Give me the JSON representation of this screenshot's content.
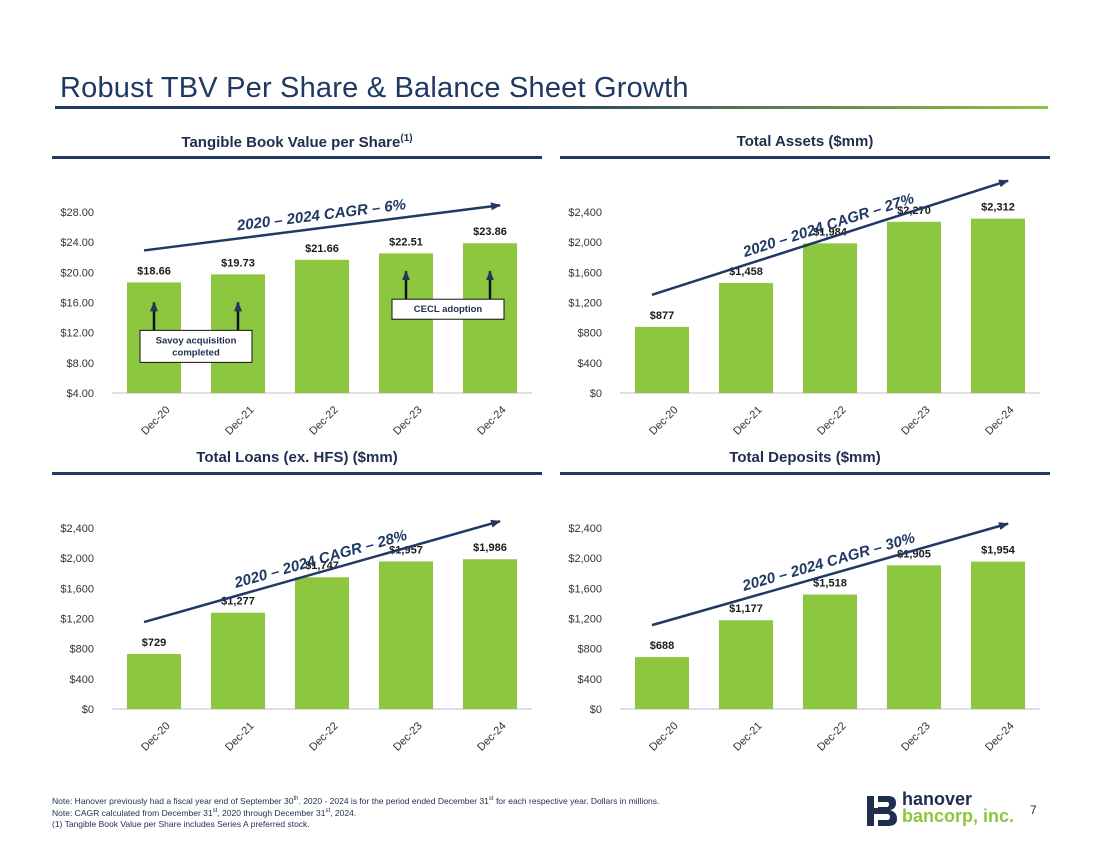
{
  "title": "Robust TBV Per Share & Balance Sheet Growth",
  "page_number": "7",
  "logo": {
    "line1": "hanover",
    "line2": "bancorp, inc."
  },
  "footnotes": [
    {
      "prefix": "Note: Hanover previously had a fiscal year end of September 30",
      "sup": "th",
      "mid": ". 2020 - 2024 is for the period ended December 31",
      "sup2": "st",
      "suffix": " for each respective year. Dollars in millions."
    },
    {
      "prefix": "Note: CAGR calculated from December 31",
      "sup": "st",
      "mid": ", 2020 through December 31",
      "sup2": "st",
      "suffix": ", 2024."
    },
    {
      "prefix": "(1) Tangible Book Value per Share includes Series A preferred stock.",
      "sup": "",
      "mid": "",
      "sup2": "",
      "suffix": ""
    }
  ],
  "colors": {
    "bar": "#8dc63f",
    "navy": "#1f3864",
    "text": "#1f2d4e"
  },
  "chart_data": [
    {
      "type": "bar",
      "title": "Tangible Book Value per Share",
      "title_sup": "(1)",
      "categories": [
        "Dec-20",
        "Dec-21",
        "Dec-22",
        "Dec-23",
        "Dec-24"
      ],
      "values": [
        18.66,
        19.73,
        21.66,
        22.51,
        23.86
      ],
      "value_labels": [
        "$18.66",
        "$19.73",
        "$21.66",
        "$22.51",
        "$23.86"
      ],
      "ylim": [
        4,
        28
      ],
      "ticks": [
        4,
        8,
        12,
        16,
        20,
        24,
        28
      ],
      "tick_labels": [
        "$4.00",
        "$8.00",
        "$12.00",
        "$16.00",
        "$20.00",
        "$24.00",
        "$28.00"
      ],
      "cagr": "2020 – 2024 CAGR – 6%",
      "annotations": [
        {
          "text": "Savoy acquisition completed",
          "bars": [
            0,
            1
          ]
        },
        {
          "text": "CECL adoption",
          "bars": [
            3,
            4
          ]
        }
      ]
    },
    {
      "type": "bar",
      "title": "Total Assets ($mm)",
      "title_sup": "",
      "categories": [
        "Dec-20",
        "Dec-21",
        "Dec-22",
        "Dec-23",
        "Dec-24"
      ],
      "values": [
        877,
        1458,
        1984,
        2270,
        2312
      ],
      "value_labels": [
        "$877",
        "$1,458",
        "$1,984",
        "$2,270",
        "$2,312"
      ],
      "ylim": [
        0,
        2400
      ],
      "ticks": [
        0,
        400,
        800,
        1200,
        1600,
        2000,
        2400
      ],
      "tick_labels": [
        "$0",
        "$400",
        "$800",
        "$1,200",
        "$1,600",
        "$2,000",
        "$2,400"
      ],
      "cagr": "2020 – 2024 CAGR – 27%",
      "annotations": []
    },
    {
      "type": "bar",
      "title": "Total Loans (ex. HFS) ($mm)",
      "title_sup": "",
      "categories": [
        "Dec-20",
        "Dec-21",
        "Dec-22",
        "Dec-23",
        "Dec-24"
      ],
      "values": [
        729,
        1277,
        1747,
        1957,
        1986
      ],
      "value_labels": [
        "$729",
        "$1,277",
        "$1,747",
        "$1,957",
        "$1,986"
      ],
      "ylim": [
        0,
        2400
      ],
      "ticks": [
        0,
        400,
        800,
        1200,
        1600,
        2000,
        2400
      ],
      "tick_labels": [
        "$0",
        "$400",
        "$800",
        "$1,200",
        "$1,600",
        "$2,000",
        "$2,400"
      ],
      "cagr": "2020 – 2024 CAGR – 28%",
      "annotations": []
    },
    {
      "type": "bar",
      "title": "Total Deposits ($mm)",
      "title_sup": "",
      "categories": [
        "Dec-20",
        "Dec-21",
        "Dec-22",
        "Dec-23",
        "Dec-24"
      ],
      "values": [
        688,
        1177,
        1518,
        1905,
        1954
      ],
      "value_labels": [
        "$688",
        "$1,177",
        "$1,518",
        "$1,905",
        "$1,954"
      ],
      "ylim": [
        0,
        2400
      ],
      "ticks": [
        0,
        400,
        800,
        1200,
        1600,
        2000,
        2400
      ],
      "tick_labels": [
        "$0",
        "$400",
        "$800",
        "$1,200",
        "$1,600",
        "$2,000",
        "$2,400"
      ],
      "cagr": "2020 – 2024 CAGR – 30%",
      "annotations": []
    }
  ]
}
